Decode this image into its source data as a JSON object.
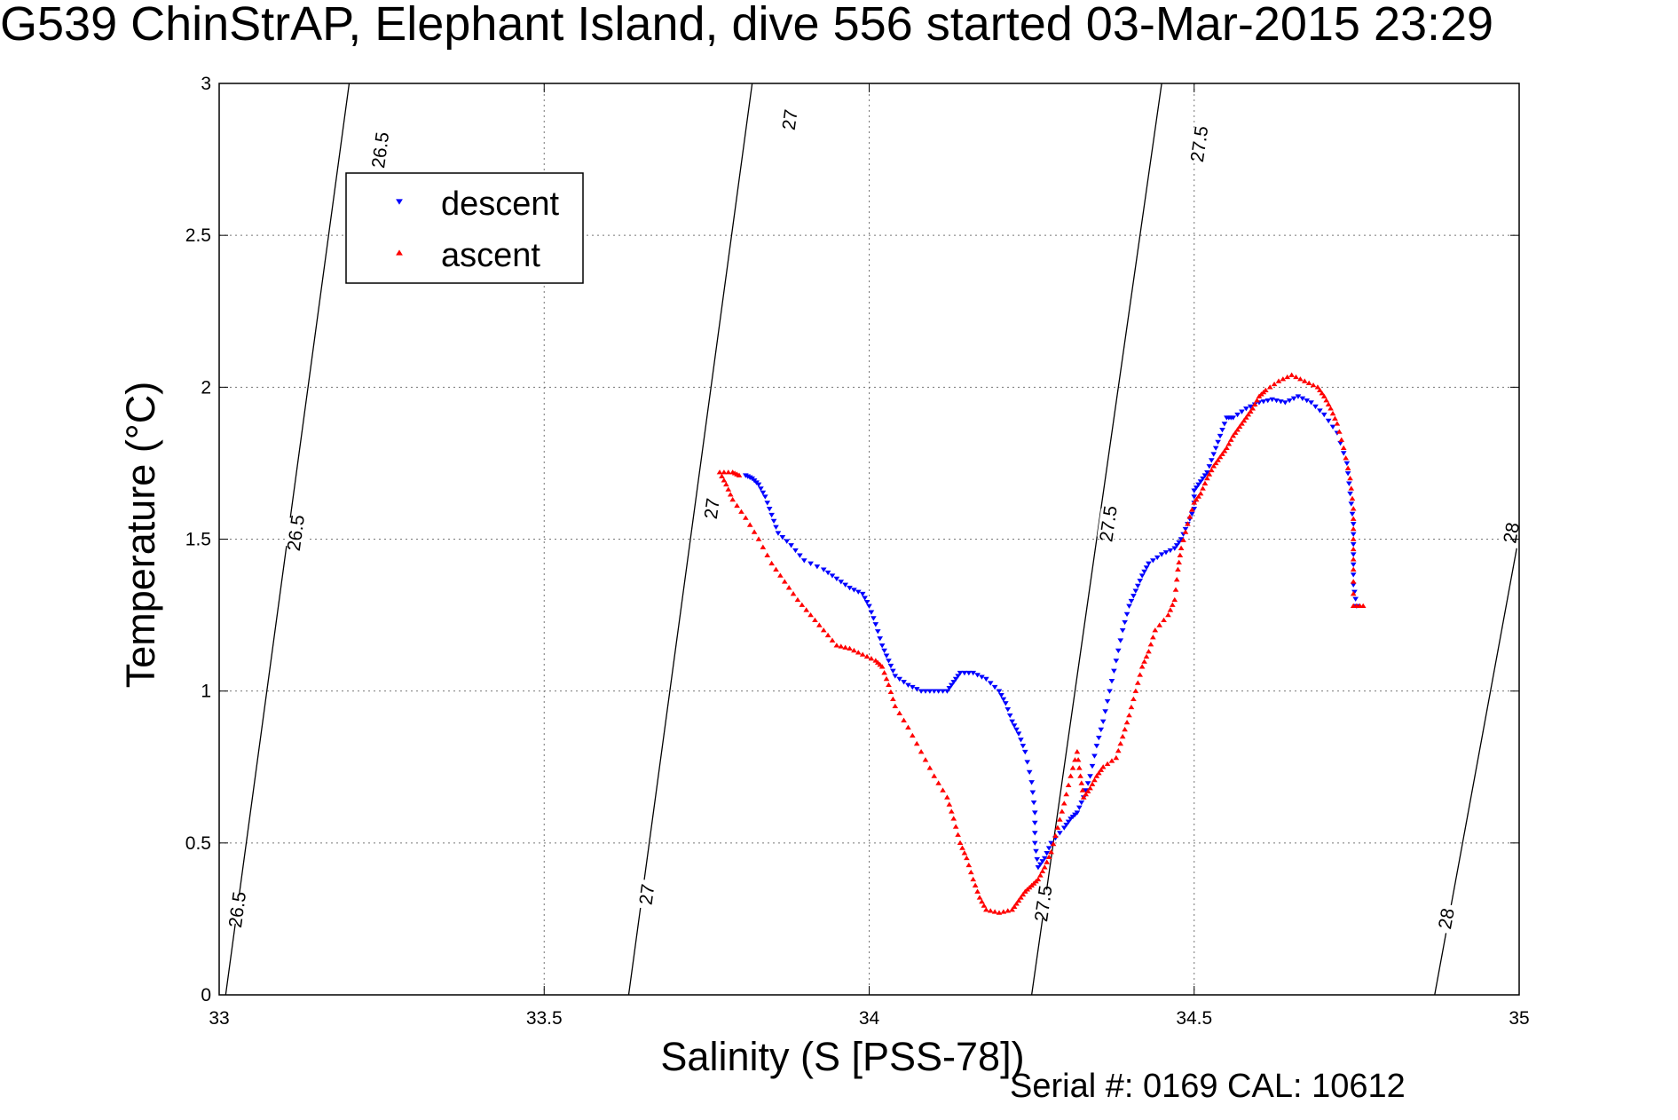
{
  "title": "G539 ChinStrAP, Elephant Island, dive 556 started 03-Mar-2015 23:29",
  "footer": "Serial #: 0169 CAL: 10612",
  "chart_data": {
    "type": "scatter",
    "title": "G539 ChinStrAP, Elephant Island, dive 556 started 03-Mar-2015 23:29",
    "xlabel": "Salinity (S [PSS-78])",
    "ylabel": "Temperature (°C)",
    "xlim": [
      33,
      35
    ],
    "ylim": [
      0,
      3
    ],
    "xticks": [
      "33",
      "33.5",
      "34",
      "34.5",
      "35"
    ],
    "yticks": [
      "0",
      "0.5",
      "1",
      "1.5",
      "2",
      "2.5",
      "3"
    ],
    "grid": true,
    "legend": "top-left",
    "density_contours": [
      {
        "level": "26.5",
        "points": [
          [
            33.01,
            0
          ],
          [
            33.2,
            3.0
          ]
        ],
        "labels": [
          [
            33.03,
            0.28
          ],
          [
            33.12,
            1.52
          ],
          [
            33.25,
            2.78
          ]
        ]
      },
      {
        "level": "27",
        "points": [
          [
            33.63,
            0
          ],
          [
            33.82,
            3.0
          ]
        ],
        "labels": [
          [
            33.66,
            0.33
          ],
          [
            33.76,
            1.6
          ],
          [
            33.88,
            2.88
          ]
        ]
      },
      {
        "level": "27.5",
        "points": [
          [
            34.25,
            0
          ],
          [
            34.45,
            3.0
          ]
        ],
        "labels": [
          [
            34.27,
            0.3
          ],
          [
            34.37,
            1.55
          ],
          [
            34.51,
            2.8
          ]
        ]
      },
      {
        "level": "28",
        "points": [
          [
            34.87,
            0
          ],
          [
            35.01,
            1.63
          ]
        ],
        "labels": [
          [
            34.89,
            0.25
          ],
          [
            34.99,
            1.52
          ]
        ]
      }
    ],
    "series": [
      {
        "name": "descent",
        "color": "#0000ff",
        "marker": "triangle-down",
        "points": [
          [
            34.75,
            1.28
          ],
          [
            34.745,
            1.35
          ],
          [
            34.745,
            1.45
          ],
          [
            34.745,
            1.55
          ],
          [
            34.74,
            1.65
          ],
          [
            34.735,
            1.75
          ],
          [
            34.72,
            1.85
          ],
          [
            34.7,
            1.91
          ],
          [
            34.68,
            1.95
          ],
          [
            34.66,
            1.97
          ],
          [
            34.64,
            1.95
          ],
          [
            34.62,
            1.96
          ],
          [
            34.6,
            1.95
          ],
          [
            34.58,
            1.93
          ],
          [
            34.56,
            1.9
          ],
          [
            34.55,
            1.9
          ],
          [
            34.54,
            1.84
          ],
          [
            34.53,
            1.78
          ],
          [
            34.52,
            1.72
          ],
          [
            34.51,
            1.69
          ],
          [
            34.5,
            1.66
          ],
          [
            34.5,
            1.6
          ],
          [
            34.49,
            1.55
          ],
          [
            34.48,
            1.5
          ],
          [
            34.47,
            1.47
          ],
          [
            34.45,
            1.45
          ],
          [
            34.43,
            1.42
          ],
          [
            34.42,
            1.38
          ],
          [
            34.41,
            1.33
          ],
          [
            34.4,
            1.28
          ],
          [
            34.39,
            1.2
          ],
          [
            34.38,
            1.1
          ],
          [
            34.37,
            1.0
          ],
          [
            34.36,
            0.9
          ],
          [
            34.35,
            0.82
          ],
          [
            34.34,
            0.72
          ],
          [
            34.33,
            0.65
          ],
          [
            34.32,
            0.6
          ],
          [
            34.31,
            0.58
          ],
          [
            34.3,
            0.55
          ],
          [
            34.28,
            0.5
          ],
          [
            34.27,
            0.45
          ],
          [
            34.26,
            0.42
          ],
          [
            34.255,
            0.5
          ],
          [
            34.255,
            0.6
          ],
          [
            34.25,
            0.7
          ],
          [
            34.24,
            0.8
          ],
          [
            34.23,
            0.86
          ],
          [
            34.22,
            0.9
          ],
          [
            34.21,
            0.96
          ],
          [
            34.2,
            1.0
          ],
          [
            34.18,
            1.04
          ],
          [
            34.16,
            1.06
          ],
          [
            34.14,
            1.06
          ],
          [
            34.13,
            1.03
          ],
          [
            34.12,
            1.0
          ],
          [
            34.1,
            1.0
          ],
          [
            34.08,
            1.0
          ],
          [
            34.06,
            1.02
          ],
          [
            34.04,
            1.05
          ],
          [
            34.03,
            1.1
          ],
          [
            34.02,
            1.15
          ],
          [
            34.01,
            1.22
          ],
          [
            34.0,
            1.28
          ],
          [
            33.99,
            1.32
          ],
          [
            33.97,
            1.34
          ],
          [
            33.95,
            1.37
          ],
          [
            33.93,
            1.4
          ],
          [
            33.9,
            1.43
          ],
          [
            33.88,
            1.48
          ],
          [
            33.86,
            1.52
          ],
          [
            33.85,
            1.58
          ],
          [
            33.84,
            1.64
          ],
          [
            33.83,
            1.68
          ],
          [
            33.82,
            1.7
          ],
          [
            33.81,
            1.71
          ]
        ]
      },
      {
        "name": "ascent",
        "color": "#ff0000",
        "marker": "triangle-up",
        "points": [
          [
            34.76,
            1.28
          ],
          [
            34.745,
            1.28
          ],
          [
            34.745,
            1.4
          ],
          [
            34.745,
            1.5
          ],
          [
            34.745,
            1.6
          ],
          [
            34.74,
            1.7
          ],
          [
            34.73,
            1.8
          ],
          [
            34.72,
            1.88
          ],
          [
            34.71,
            1.93
          ],
          [
            34.7,
            1.97
          ],
          [
            34.69,
            2.0
          ],
          [
            34.67,
            2.02
          ],
          [
            34.65,
            2.04
          ],
          [
            34.63,
            2.02
          ],
          [
            34.61,
            1.99
          ],
          [
            34.6,
            1.97
          ],
          [
            34.59,
            1.93
          ],
          [
            34.58,
            1.9
          ],
          [
            34.57,
            1.87
          ],
          [
            34.56,
            1.84
          ],
          [
            34.55,
            1.8
          ],
          [
            34.54,
            1.77
          ],
          [
            34.53,
            1.74
          ],
          [
            34.52,
            1.7
          ],
          [
            34.51,
            1.65
          ],
          [
            34.5,
            1.62
          ],
          [
            34.49,
            1.55
          ],
          [
            34.48,
            1.47
          ],
          [
            34.475,
            1.4
          ],
          [
            34.47,
            1.3
          ],
          [
            34.46,
            1.25
          ],
          [
            34.44,
            1.2
          ],
          [
            34.43,
            1.13
          ],
          [
            34.42,
            1.08
          ],
          [
            34.41,
            1.0
          ],
          [
            34.4,
            0.92
          ],
          [
            34.39,
            0.85
          ],
          [
            34.38,
            0.78
          ],
          [
            34.36,
            0.75
          ],
          [
            34.35,
            0.72
          ],
          [
            34.34,
            0.68
          ],
          [
            34.33,
            0.65
          ],
          [
            34.325,
            0.72
          ],
          [
            34.32,
            0.8
          ],
          [
            34.31,
            0.72
          ],
          [
            34.3,
            0.63
          ],
          [
            34.29,
            0.55
          ],
          [
            34.28,
            0.47
          ],
          [
            34.27,
            0.42
          ],
          [
            34.26,
            0.38
          ],
          [
            34.25,
            0.36
          ],
          [
            34.24,
            0.34
          ],
          [
            34.23,
            0.31
          ],
          [
            34.22,
            0.28
          ],
          [
            34.2,
            0.27
          ],
          [
            34.18,
            0.28
          ],
          [
            34.17,
            0.32
          ],
          [
            34.16,
            0.38
          ],
          [
            34.15,
            0.45
          ],
          [
            34.14,
            0.5
          ],
          [
            34.13,
            0.58
          ],
          [
            34.12,
            0.65
          ],
          [
            34.1,
            0.72
          ],
          [
            34.08,
            0.8
          ],
          [
            34.06,
            0.88
          ],
          [
            34.04,
            0.95
          ],
          [
            34.03,
            1.02
          ],
          [
            34.02,
            1.08
          ],
          [
            34.01,
            1.1
          ],
          [
            33.99,
            1.12
          ],
          [
            33.97,
            1.14
          ],
          [
            33.95,
            1.15
          ],
          [
            33.93,
            1.2
          ],
          [
            33.91,
            1.25
          ],
          [
            33.89,
            1.3
          ],
          [
            33.87,
            1.36
          ],
          [
            33.85,
            1.42
          ],
          [
            33.83,
            1.5
          ],
          [
            33.81,
            1.57
          ],
          [
            33.79,
            1.63
          ],
          [
            33.78,
            1.68
          ],
          [
            33.77,
            1.72
          ],
          [
            33.79,
            1.72
          ],
          [
            33.8,
            1.71
          ]
        ]
      }
    ]
  }
}
